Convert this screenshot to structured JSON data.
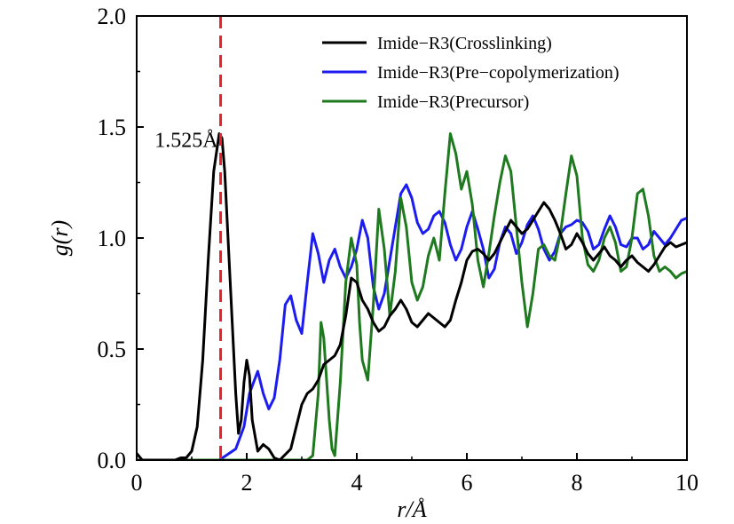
{
  "chart_data": {
    "type": "line",
    "xlabel": "r/Å",
    "ylabel": "g(r)",
    "xlim": [
      0,
      10
    ],
    "ylim": [
      0,
      2.0
    ],
    "x_ticks": [
      "0",
      "2",
      "4",
      "6",
      "8",
      "10"
    ],
    "y_ticks": [
      "0.0",
      "0.5",
      "1.0",
      "1.5",
      "2.0"
    ],
    "grid": false,
    "legend_position": "top-right",
    "reference_line": {
      "x": 1.525,
      "color": "#e8202a",
      "style": "dashed"
    },
    "annotation": {
      "text": "1.525Å",
      "x": 1.525,
      "y": 1.45
    },
    "series": [
      {
        "name": "Imide−R3(Crosslinking)",
        "color": "#000000",
        "x": [
          0,
          0.1,
          0.3,
          0.5,
          0.7,
          0.8,
          0.9,
          1.0,
          1.1,
          1.2,
          1.3,
          1.4,
          1.5,
          1.55,
          1.6,
          1.7,
          1.8,
          1.85,
          1.9,
          1.95,
          2.0,
          2.05,
          2.1,
          2.2,
          2.3,
          2.4,
          2.5,
          2.6,
          2.8,
          2.9,
          3.0,
          3.1,
          3.2,
          3.3,
          3.4,
          3.5,
          3.6,
          3.7,
          3.8,
          3.9,
          4.0,
          4.1,
          4.2,
          4.3,
          4.4,
          4.5,
          4.6,
          4.7,
          4.8,
          4.9,
          5.0,
          5.1,
          5.2,
          5.3,
          5.4,
          5.5,
          5.6,
          5.7,
          5.8,
          5.9,
          6.0,
          6.1,
          6.2,
          6.3,
          6.4,
          6.5,
          6.6,
          6.7,
          6.8,
          6.9,
          7.0,
          7.1,
          7.2,
          7.3,
          7.4,
          7.5,
          7.6,
          7.7,
          7.8,
          7.9,
          8.0,
          8.1,
          8.2,
          8.3,
          8.4,
          8.5,
          8.6,
          8.7,
          8.8,
          8.9,
          9.0,
          9.1,
          9.2,
          9.3,
          9.4,
          9.5,
          9.6,
          9.7,
          9.8,
          9.9,
          10.0
        ],
        "y": [
          0.03,
          0.0,
          0.0,
          0.0,
          0.0,
          0.01,
          0.01,
          0.04,
          0.15,
          0.45,
          0.9,
          1.3,
          1.47,
          1.45,
          1.3,
          0.8,
          0.3,
          0.12,
          0.18,
          0.35,
          0.45,
          0.38,
          0.18,
          0.04,
          0.07,
          0.05,
          0.01,
          0.0,
          0.05,
          0.15,
          0.25,
          0.3,
          0.32,
          0.36,
          0.43,
          0.45,
          0.47,
          0.52,
          0.65,
          0.82,
          0.8,
          0.72,
          0.68,
          0.62,
          0.58,
          0.6,
          0.65,
          0.68,
          0.72,
          0.68,
          0.62,
          0.6,
          0.63,
          0.66,
          0.64,
          0.62,
          0.6,
          0.63,
          0.72,
          0.8,
          0.9,
          0.94,
          0.95,
          0.93,
          0.9,
          0.93,
          0.98,
          1.03,
          1.08,
          1.05,
          1.02,
          1.04,
          1.08,
          1.12,
          1.16,
          1.13,
          1.08,
          1.02,
          0.95,
          0.97,
          1.02,
          0.98,
          0.93,
          0.9,
          0.93,
          0.96,
          0.92,
          0.9,
          0.87,
          0.9,
          0.92,
          0.89,
          0.87,
          0.85,
          0.88,
          0.92,
          0.96,
          0.98,
          0.96,
          0.97,
          0.98
        ]
      },
      {
        "name": "Imide−R3(Pre−copolymerization)",
        "color": "#1c1cf0",
        "x": [
          0,
          0.5,
          1.0,
          1.5,
          1.8,
          1.95,
          2.05,
          2.2,
          2.3,
          2.4,
          2.5,
          2.6,
          2.7,
          2.8,
          2.9,
          3.0,
          3.1,
          3.2,
          3.3,
          3.4,
          3.5,
          3.6,
          3.7,
          3.8,
          3.9,
          4.0,
          4.1,
          4.2,
          4.3,
          4.4,
          4.5,
          4.6,
          4.7,
          4.8,
          4.9,
          5.0,
          5.1,
          5.2,
          5.3,
          5.4,
          5.5,
          5.6,
          5.7,
          5.8,
          5.9,
          6.0,
          6.1,
          6.2,
          6.3,
          6.4,
          6.5,
          6.6,
          6.7,
          6.8,
          6.9,
          7.0,
          7.1,
          7.2,
          7.3,
          7.4,
          7.5,
          7.6,
          7.7,
          7.8,
          7.9,
          8.0,
          8.1,
          8.2,
          8.3,
          8.4,
          8.5,
          8.6,
          8.7,
          8.8,
          8.9,
          9.0,
          9.1,
          9.2,
          9.3,
          9.4,
          9.5,
          9.6,
          9.7,
          9.8,
          9.9,
          10.0
        ],
        "y": [
          0,
          0,
          0,
          0,
          0.05,
          0.15,
          0.3,
          0.4,
          0.3,
          0.23,
          0.28,
          0.45,
          0.7,
          0.74,
          0.63,
          0.57,
          0.8,
          1.02,
          0.93,
          0.8,
          0.9,
          0.95,
          0.87,
          0.82,
          0.87,
          0.95,
          1.08,
          1.0,
          0.78,
          0.68,
          0.75,
          0.9,
          1.05,
          1.2,
          1.24,
          1.18,
          1.07,
          1.02,
          1.04,
          1.1,
          1.12,
          1.07,
          0.97,
          0.9,
          0.95,
          1.05,
          1.12,
          1.04,
          0.95,
          0.82,
          0.86,
          0.98,
          1.05,
          1.02,
          0.93,
          0.98,
          1.06,
          1.1,
          1.04,
          0.95,
          0.9,
          0.94,
          1.02,
          1.05,
          1.06,
          1.08,
          1.07,
          1.03,
          0.95,
          0.97,
          1.04,
          1.1,
          1.05,
          0.97,
          0.96,
          1.0,
          1.0,
          0.95,
          0.97,
          1.03,
          1.0,
          0.97,
          1.0,
          1.04,
          1.08,
          1.09
        ]
      },
      {
        "name": "Imide−R3(Precursor)",
        "color": "#1f7a1f",
        "x": [
          0,
          1.0,
          2.0,
          2.9,
          3.0,
          3.1,
          3.2,
          3.3,
          3.35,
          3.4,
          3.5,
          3.55,
          3.6,
          3.7,
          3.8,
          3.9,
          4.0,
          4.05,
          4.1,
          4.2,
          4.3,
          4.4,
          4.5,
          4.6,
          4.7,
          4.8,
          4.9,
          5.0,
          5.1,
          5.2,
          5.3,
          5.4,
          5.5,
          5.6,
          5.7,
          5.8,
          5.9,
          6.0,
          6.1,
          6.2,
          6.3,
          6.4,
          6.5,
          6.6,
          6.7,
          6.8,
          6.9,
          7.0,
          7.1,
          7.2,
          7.3,
          7.4,
          7.5,
          7.6,
          7.7,
          7.8,
          7.9,
          8.0,
          8.1,
          8.2,
          8.3,
          8.4,
          8.5,
          8.6,
          8.7,
          8.8,
          8.9,
          9.0,
          9.1,
          9.2,
          9.3,
          9.4,
          9.5,
          9.6,
          9.7,
          9.8,
          9.9,
          10.0
        ],
        "y": [
          0,
          0,
          0,
          0,
          0,
          0,
          0.02,
          0.3,
          0.62,
          0.55,
          0.18,
          0.05,
          0.02,
          0.35,
          0.8,
          1.0,
          0.88,
          0.62,
          0.45,
          0.36,
          0.7,
          1.13,
          0.95,
          0.65,
          0.85,
          1.18,
          1.05,
          0.8,
          0.72,
          0.78,
          0.92,
          1.0,
          0.9,
          1.2,
          1.47,
          1.38,
          1.22,
          1.3,
          1.15,
          0.9,
          0.78,
          0.93,
          1.1,
          1.25,
          1.37,
          1.3,
          1.05,
          0.8,
          0.6,
          0.75,
          0.95,
          0.97,
          0.92,
          0.9,
          1.02,
          1.2,
          1.37,
          1.28,
          1.0,
          0.88,
          0.85,
          0.9,
          1.0,
          1.05,
          0.98,
          0.85,
          0.87,
          1.0,
          1.2,
          1.22,
          1.1,
          0.92,
          0.85,
          0.87,
          0.85,
          0.82,
          0.84,
          0.85
        ]
      }
    ]
  }
}
